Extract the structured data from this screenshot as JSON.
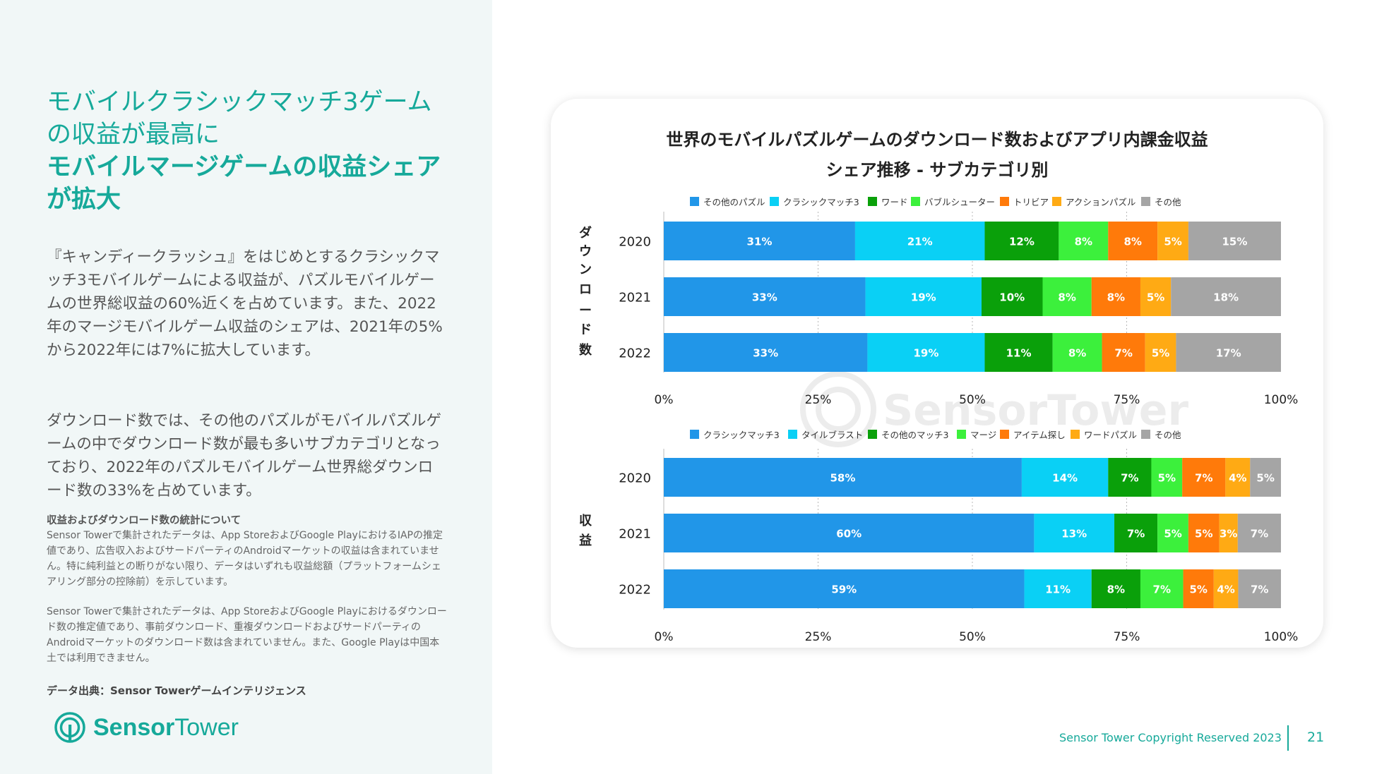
{
  "left": {
    "title_line1": "モバイルクラシックマッチ3ゲーム",
    "title_line2": "の収益が最高に",
    "title_line3": "モバイルマージゲームの収益シェア",
    "title_line4": "が拡大",
    "paragraph1": "『キャンディークラッシュ』をはじめとするクラシックマッチ3モバイルゲームによる収益が、パズルモバイルゲームの世界総収益の60%近くを占めています。また、2022年のマージモバイルゲーム収益のシェアは、2021年の5%から2022年には7%に拡大しています。",
    "paragraph2": "ダウンロード数では、その他のパズルがモバイルパズルゲームの中でダウンロード数が最も多いサブカテゴリとなっており、2022年のパズルモバイルゲーム世界総ダウンロード数の33%を占めています。",
    "note_title": "収益およびダウンロード数の統計について",
    "note1": "Sensor Towerで集計されたデータは、App StoreおよびGoogle PlayにおけるIAPの推定値であり、広告収入およびサードパーティのAndroidマーケットの収益は含まれていません。特に純利益との断りがない限り、データはいずれも収益総額（プラットフォームシェアリング部分の控除前）を示しています。",
    "note2": "Sensor Towerで集計されたデータは、App StoreおよびGoogle Playにおけるダウンロード数の推定値であり、事前ダウンロード、重複ダウンロードおよびサードパーティのAndroidマーケットのダウンロード数は含まれていません。また、Google Playは中国本土では利用できません。",
    "source": "データ出典：Sensor Towerゲームインテリジェンス",
    "logo_word1": "Sensor",
    "logo_word2": "Tower"
  },
  "footer": {
    "copyright": "Sensor Tower Copyright Reserved 2023",
    "page": "21"
  },
  "watermark": "SensorTower",
  "chart_data": [
    {
      "type": "bar",
      "stacked": true,
      "orientation": "horizontal",
      "title": "世界のモバイルパズルゲームのダウンロード数およびアプリ内課金収益",
      "subtitle": "シェア推移 - サブカテゴリ別",
      "ylabel": "ダウンロード数",
      "categories": [
        "2020",
        "2021",
        "2022"
      ],
      "xlim": [
        0,
        100
      ],
      "xticks": [
        "0%",
        "25%",
        "50%",
        "75%",
        "100%"
      ],
      "series": [
        {
          "name": "その他のパズル",
          "color": "#2196e8",
          "values": [
            31,
            33,
            33
          ]
        },
        {
          "name": "クラシックマッチ3",
          "color": "#0ad0f5",
          "values": [
            21,
            19,
            19
          ]
        },
        {
          "name": "ワード",
          "color": "#0aa00a",
          "values": [
            12,
            10,
            11
          ]
        },
        {
          "name": "バブルシューター",
          "color": "#3cf03c",
          "values": [
            8,
            8,
            8
          ]
        },
        {
          "name": "トリビア",
          "color": "#ff7a0a",
          "values": [
            8,
            8,
            7
          ]
        },
        {
          "name": "アクションパズル",
          "color": "#ffaa14",
          "values": [
            5,
            5,
            5
          ]
        },
        {
          "name": "その他",
          "color": "#a5a5a5",
          "values": [
            15,
            18,
            17
          ]
        }
      ]
    },
    {
      "type": "bar",
      "stacked": true,
      "orientation": "horizontal",
      "ylabel": "収益",
      "categories": [
        "2020",
        "2021",
        "2022"
      ],
      "xlim": [
        0,
        100
      ],
      "xticks": [
        "0%",
        "25%",
        "50%",
        "75%",
        "100%"
      ],
      "series": [
        {
          "name": "クラシックマッチ3",
          "color": "#2196e8",
          "values": [
            58,
            60,
            59
          ]
        },
        {
          "name": "タイルブラスト",
          "color": "#0ad0f5",
          "values": [
            14,
            13,
            11
          ]
        },
        {
          "name": "その他のマッチ3",
          "color": "#0aa00a",
          "values": [
            7,
            7,
            8
          ]
        },
        {
          "name": "マージ",
          "color": "#3cf03c",
          "values": [
            5,
            5,
            7
          ]
        },
        {
          "name": "アイテム探し",
          "color": "#ff7a0a",
          "values": [
            7,
            5,
            5
          ]
        },
        {
          "name": "ワードパズル",
          "color": "#ffaa14",
          "values": [
            4,
            3,
            4
          ]
        },
        {
          "name": "その他",
          "color": "#a5a5a5",
          "values": [
            5,
            7,
            7
          ]
        }
      ]
    }
  ]
}
